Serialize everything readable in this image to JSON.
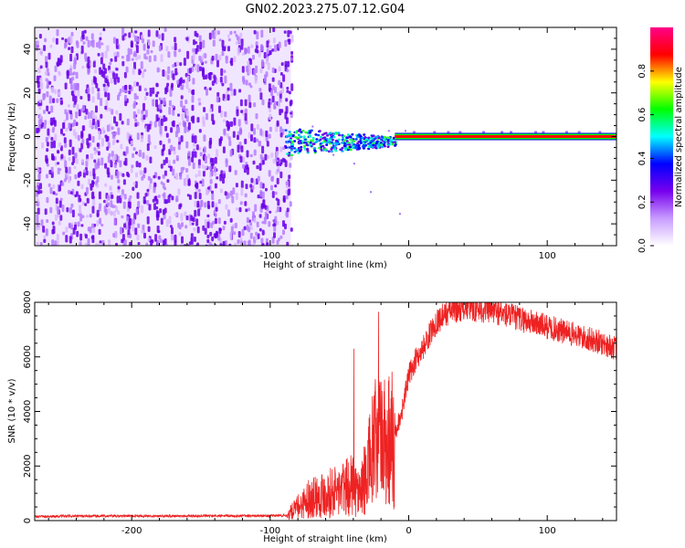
{
  "title": "GN02.2023.275.07.12.G04",
  "colors": {
    "snr_line": "#ee2222",
    "waterfall": "#6a00e8",
    "waterfall_light": "#d9b8ff",
    "axis": "#000000"
  },
  "chart_data": [
    {
      "type": "heatmap",
      "xlabel": "Height of straight line (km)",
      "ylabel": "Frequency (Hz)",
      "xlim": [
        -270,
        150
      ],
      "ylim": [
        -50,
        50
      ],
      "xticks": [
        -200,
        -100,
        0,
        100
      ],
      "yticks": [
        -40,
        -20,
        0,
        20,
        40
      ],
      "noise_region_x": [
        -270,
        -85
      ],
      "signal_band_y": 0,
      "colorbar": {
        "label": "Normalized spectral amplitude",
        "ticks": [
          0.0,
          0.2,
          0.4,
          0.6,
          0.8
        ],
        "range": [
          0,
          1
        ],
        "colormap": [
          "#ffffff",
          "#c89cff",
          "#7700ee",
          "#0000ff",
          "#00ffff",
          "#00ff00",
          "#ffff00",
          "#ff0000",
          "#ff0088"
        ]
      }
    },
    {
      "type": "line",
      "xlabel": "Height of straight line (km)",
      "ylabel": "SNR (10 * v/v)",
      "xlim": [
        -270,
        150
      ],
      "ylim": [
        0,
        8000
      ],
      "xticks": [
        -200,
        -100,
        0,
        100
      ],
      "yticks": [
        0,
        2000,
        4000,
        6000,
        8000
      ],
      "series": [
        {
          "x": [
            -270,
            -250,
            -200,
            -150,
            -100,
            -88,
            -80,
            -70,
            -60,
            -50,
            -40,
            -35,
            -30,
            -25,
            -20,
            -15,
            -10,
            -5,
            0,
            5,
            10,
            15,
            20,
            30,
            40,
            60,
            80,
            100,
            120,
            140,
            150
          ],
          "y": [
            150,
            160,
            170,
            170,
            175,
            190,
            500,
            900,
            1000,
            1100,
            1300,
            1000,
            1800,
            2700,
            3000,
            3000,
            3200,
            4000,
            5300,
            5900,
            6300,
            6800,
            7300,
            7700,
            7800,
            7700,
            7400,
            7100,
            6800,
            6500,
            6300
          ]
        }
      ]
    }
  ]
}
